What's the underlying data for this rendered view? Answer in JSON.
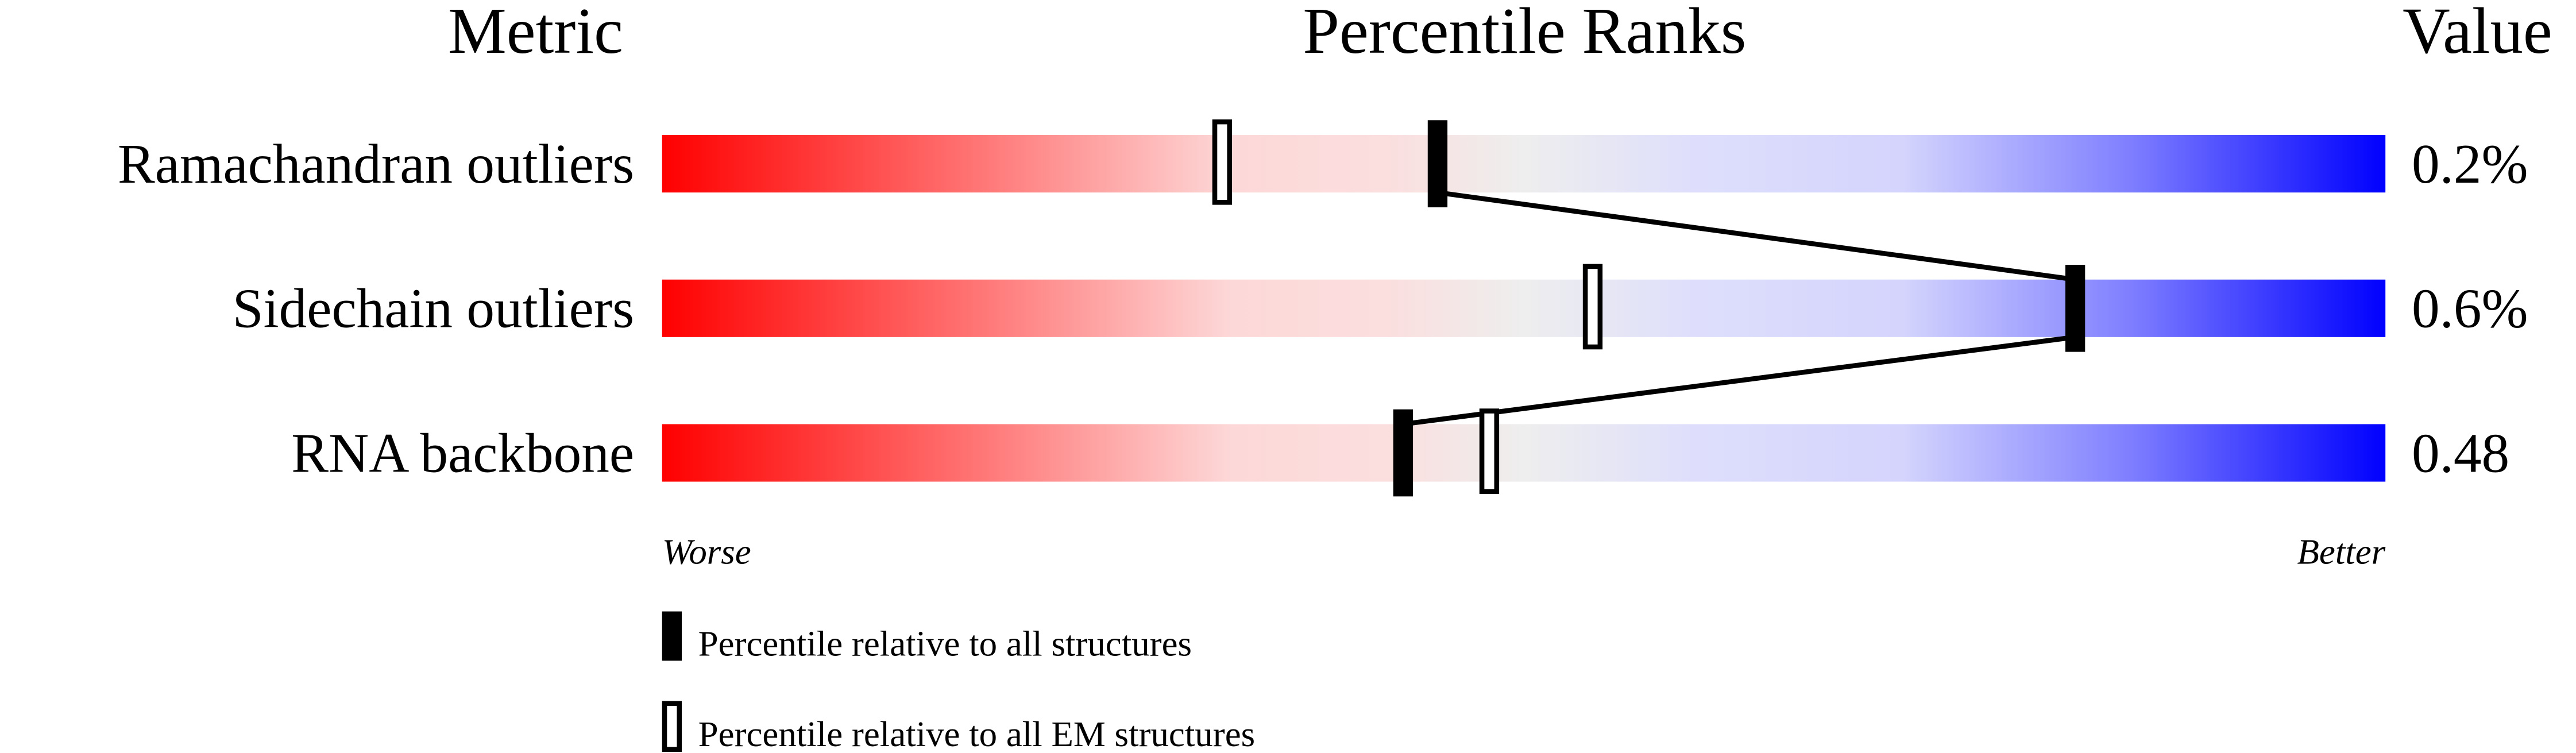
{
  "chart_data": {
    "type": "percentile-bar",
    "headers": {
      "metric": "Metric",
      "percentile": "Percentile Ranks",
      "value": "Value"
    },
    "axis": {
      "left_label": "Worse",
      "right_label": "Better",
      "range": [
        0,
        100
      ]
    },
    "rows": [
      {
        "metric": "Ramachandran outliers",
        "value": "0.2%",
        "percentile_all": 45,
        "percentile_em": 32.5
      },
      {
        "metric": "Sidechain outliers",
        "value": "0.6%",
        "percentile_all": 82,
        "percentile_em": 54
      },
      {
        "metric": "RNA backbone",
        "value": "0.48",
        "percentile_all": 43,
        "percentile_em": 48
      }
    ],
    "legend": {
      "all": "Percentile relative to all structures",
      "em": "Percentile relative to all EM structures"
    },
    "colors": {
      "worse": "#ff0000",
      "middle": "#eeeeee",
      "better": "#0000ff",
      "marker": "#000000"
    }
  }
}
